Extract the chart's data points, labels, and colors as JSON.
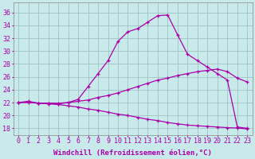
{
  "xlabel": "Windchill (Refroidissement éolien,°C)",
  "bg_color": "#c8eaea",
  "line_color": "#aa00aa",
  "grid_color": "#99bbbb",
  "x_ticks": [
    0,
    1,
    2,
    3,
    4,
    5,
    6,
    7,
    8,
    9,
    10,
    11,
    12,
    13,
    14,
    15,
    16,
    17,
    18,
    19,
    20,
    21,
    22,
    23
  ],
  "y_ticks": [
    18,
    20,
    22,
    24,
    26,
    28,
    30,
    32,
    34,
    36
  ],
  "ylim": [
    17.0,
    37.5
  ],
  "xlim": [
    -0.5,
    23.5
  ],
  "line1_x": [
    0,
    1,
    2,
    3,
    4,
    5,
    6,
    7,
    8,
    9,
    10,
    11,
    12,
    13,
    14,
    15,
    16,
    17,
    18,
    19,
    20,
    21,
    22,
    23
  ],
  "line1_y": [
    22.0,
    22.2,
    21.9,
    21.9,
    21.8,
    22.0,
    22.5,
    24.5,
    26.5,
    28.5,
    31.5,
    33.0,
    33.5,
    34.5,
    35.5,
    35.6,
    32.5,
    29.5,
    28.5,
    27.5,
    26.5,
    25.5,
    18.2,
    18.0
  ],
  "line2_x": [
    0,
    1,
    2,
    3,
    4,
    5,
    6,
    7,
    8,
    9,
    10,
    11,
    12,
    13,
    14,
    15,
    16,
    17,
    18,
    19,
    20,
    21,
    22,
    23
  ],
  "line2_y": [
    22.0,
    22.1,
    21.9,
    21.9,
    21.9,
    22.0,
    22.2,
    22.4,
    22.8,
    23.1,
    23.5,
    24.0,
    24.5,
    25.0,
    25.5,
    25.8,
    26.2,
    26.5,
    26.8,
    27.0,
    27.2,
    26.8,
    25.8,
    25.2
  ],
  "line3_x": [
    0,
    1,
    2,
    3,
    4,
    5,
    6,
    7,
    8,
    9,
    10,
    11,
    12,
    13,
    14,
    15,
    16,
    17,
    18,
    19,
    20,
    21,
    22,
    23
  ],
  "line3_y": [
    22.0,
    22.0,
    21.9,
    21.8,
    21.7,
    21.5,
    21.3,
    21.0,
    20.8,
    20.5,
    20.2,
    20.0,
    19.7,
    19.4,
    19.2,
    18.9,
    18.7,
    18.5,
    18.4,
    18.3,
    18.2,
    18.1,
    18.05,
    17.9
  ],
  "xlabel_fontsize": 6.5,
  "tick_fontsize": 6.0,
  "marker": "+",
  "markersize": 3.5,
  "linewidth": 0.9
}
